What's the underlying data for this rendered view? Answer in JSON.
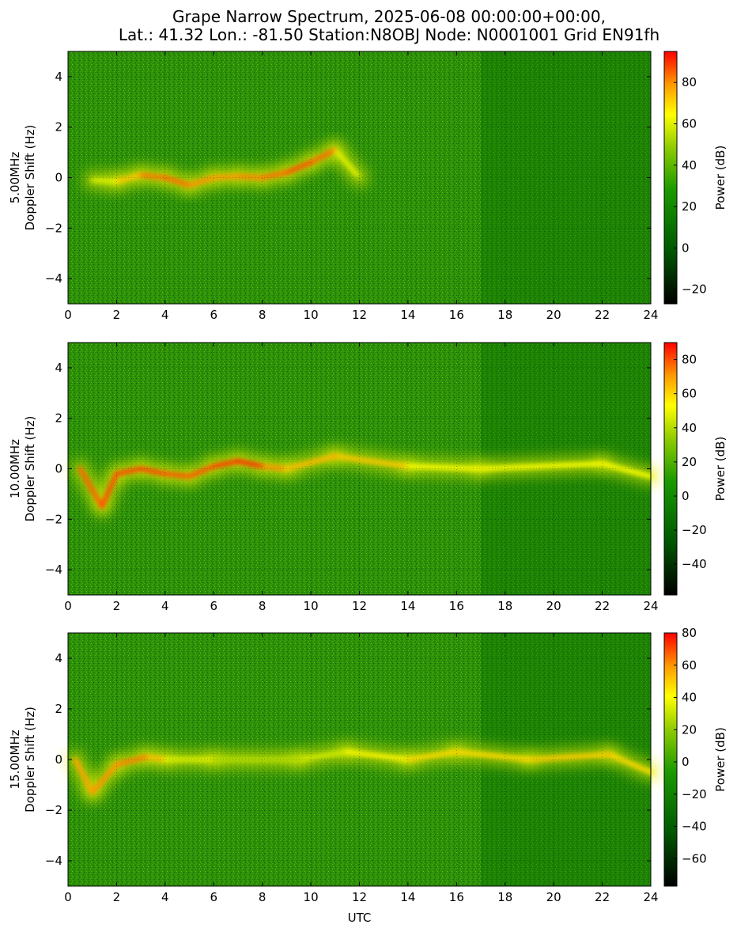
{
  "title": {
    "line1": "Grape Narrow Spectrum, 2025-06-08 00:00:00+00:00,",
    "line2": "Lat.: 41.32 Lon.: -81.50 Station:N8OBJ Node: N0001001 Grid EN91fh"
  },
  "chart_data": [
    {
      "type": "heatmap",
      "frequency_label": "5.00MHz",
      "ylabel": "Doppler Shift (Hz)",
      "xlabel": "",
      "xlim": [
        0,
        24
      ],
      "ylim": [
        -5,
        5
      ],
      "x_ticks": [
        "0",
        "2",
        "4",
        "6",
        "8",
        "10",
        "12",
        "14",
        "16",
        "18",
        "20",
        "22",
        "24"
      ],
      "y_ticks": [
        "4",
        "2",
        "0",
        "−2",
        "−4"
      ],
      "grid": true,
      "colorbar": {
        "label": "Power (dB)",
        "range": [
          -27,
          95
        ],
        "ticks": [
          "80",
          "60",
          "40",
          "20",
          "0",
          "−20"
        ]
      },
      "signal_trace": [
        {
          "t": 1.0,
          "f": -0.1,
          "dB": 55
        },
        {
          "t": 2.0,
          "f": -0.15,
          "dB": 65
        },
        {
          "t": 3.0,
          "f": 0.1,
          "dB": 80
        },
        {
          "t": 4.0,
          "f": 0.0,
          "dB": 85
        },
        {
          "t": 5.0,
          "f": -0.3,
          "dB": 82
        },
        {
          "t": 6.0,
          "f": 0.0,
          "dB": 78
        },
        {
          "t": 7.0,
          "f": 0.05,
          "dB": 80
        },
        {
          "t": 8.0,
          "f": 0.0,
          "dB": 82
        },
        {
          "t": 9.0,
          "f": 0.2,
          "dB": 85
        },
        {
          "t": 10.0,
          "f": 0.6,
          "dB": 88
        },
        {
          "t": 11.0,
          "f": 1.1,
          "dB": 80
        },
        {
          "t": 12.0,
          "f": 0.0,
          "dB": 40
        }
      ]
    },
    {
      "type": "heatmap",
      "frequency_label": "10.00MHz",
      "ylabel": "Doppler Shift (Hz)",
      "xlabel": "",
      "xlim": [
        0,
        24
      ],
      "ylim": [
        -5,
        5
      ],
      "x_ticks": [
        "0",
        "2",
        "4",
        "6",
        "8",
        "10",
        "12",
        "14",
        "16",
        "18",
        "20",
        "22",
        "24"
      ],
      "y_ticks": [
        "4",
        "2",
        "0",
        "−2",
        "−4"
      ],
      "grid": true,
      "colorbar": {
        "label": "Power (dB)",
        "range": [
          -58,
          90
        ],
        "ticks": [
          "80",
          "60",
          "40",
          "20",
          "0",
          "−20",
          "−40"
        ]
      },
      "signal_trace": [
        {
          "t": 0.5,
          "f": 0.0,
          "dB": 75
        },
        {
          "t": 1.4,
          "f": -1.5,
          "dB": 80
        },
        {
          "t": 2.0,
          "f": -0.2,
          "dB": 80
        },
        {
          "t": 3.0,
          "f": 0.0,
          "dB": 82
        },
        {
          "t": 4.0,
          "f": -0.2,
          "dB": 80
        },
        {
          "t": 5.0,
          "f": -0.3,
          "dB": 78
        },
        {
          "t": 6.0,
          "f": 0.1,
          "dB": 80
        },
        {
          "t": 7.0,
          "f": 0.3,
          "dB": 85
        },
        {
          "t": 8.0,
          "f": 0.1,
          "dB": 82
        },
        {
          "t": 9.0,
          "f": 0.0,
          "dB": 60
        },
        {
          "t": 11.0,
          "f": 0.5,
          "dB": 70
        },
        {
          "t": 14.0,
          "f": 0.1,
          "dB": 55
        },
        {
          "t": 17.0,
          "f": 0.0,
          "dB": 50
        },
        {
          "t": 22.0,
          "f": 0.2,
          "dB": 55
        },
        {
          "t": 24.0,
          "f": -0.3,
          "dB": 50
        }
      ]
    },
    {
      "type": "heatmap",
      "frequency_label": "15.00MHz",
      "ylabel": "Doppler Shift (Hz)",
      "xlabel": "UTC",
      "xlim": [
        0,
        24
      ],
      "ylim": [
        -5,
        5
      ],
      "x_ticks": [
        "0",
        "2",
        "4",
        "6",
        "8",
        "10",
        "12",
        "14",
        "16",
        "18",
        "20",
        "22",
        "24"
      ],
      "y_ticks": [
        "4",
        "2",
        "0",
        "−2",
        "−4"
      ],
      "grid": true,
      "colorbar": {
        "label": "Power (dB)",
        "range": [
          -77,
          80
        ],
        "ticks": [
          "80",
          "60",
          "40",
          "20",
          "0",
          "−20",
          "−40",
          "−60"
        ]
      },
      "signal_trace": [
        {
          "t": 0.3,
          "f": 0.0,
          "dB": 55
        },
        {
          "t": 1.0,
          "f": -1.3,
          "dB": 60
        },
        {
          "t": 2.0,
          "f": -0.2,
          "dB": 60
        },
        {
          "t": 3.2,
          "f": 0.1,
          "dB": 65
        },
        {
          "t": 4.0,
          "f": 0.0,
          "dB": 40
        },
        {
          "t": 6.0,
          "f": 0.0,
          "dB": 30
        },
        {
          "t": 9.5,
          "f": 0.0,
          "dB": 25
        },
        {
          "t": 11.5,
          "f": 0.3,
          "dB": 40
        },
        {
          "t": 14.0,
          "f": 0.0,
          "dB": 45
        },
        {
          "t": 16.0,
          "f": 0.3,
          "dB": 50
        },
        {
          "t": 19.0,
          "f": 0.0,
          "dB": 45
        },
        {
          "t": 22.3,
          "f": 0.2,
          "dB": 55
        },
        {
          "t": 24.0,
          "f": -0.5,
          "dB": 40
        }
      ]
    }
  ]
}
